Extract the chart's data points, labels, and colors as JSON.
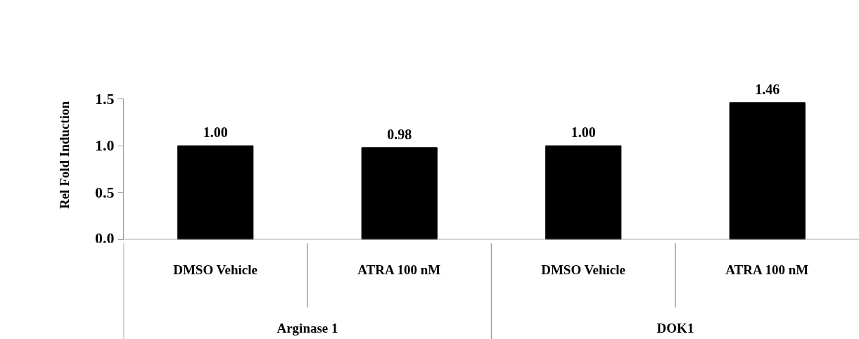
{
  "chart_data": {
    "type": "bar",
    "ylabel": "Rel Fold Induction",
    "categories": [
      "DMSO Vehicle",
      "ATRA 100 nM",
      "DMSO Vehicle",
      "ATRA 100 nM"
    ],
    "values": [
      1.0,
      0.98,
      1.0,
      1.46
    ],
    "value_labels": [
      "1.00",
      "0.98",
      "1.00",
      "1.46"
    ],
    "color": "#000000",
    "ylim": [
      0,
      1.5
    ],
    "yticks": [
      {
        "value": 0,
        "label": "0.0"
      },
      0.5,
      {
        "value": 1,
        "label": "1.0"
      },
      1.5
    ],
    "annotations": [
      "Arginase 1",
      "DOK1"
    ],
    "grid": false
  }
}
